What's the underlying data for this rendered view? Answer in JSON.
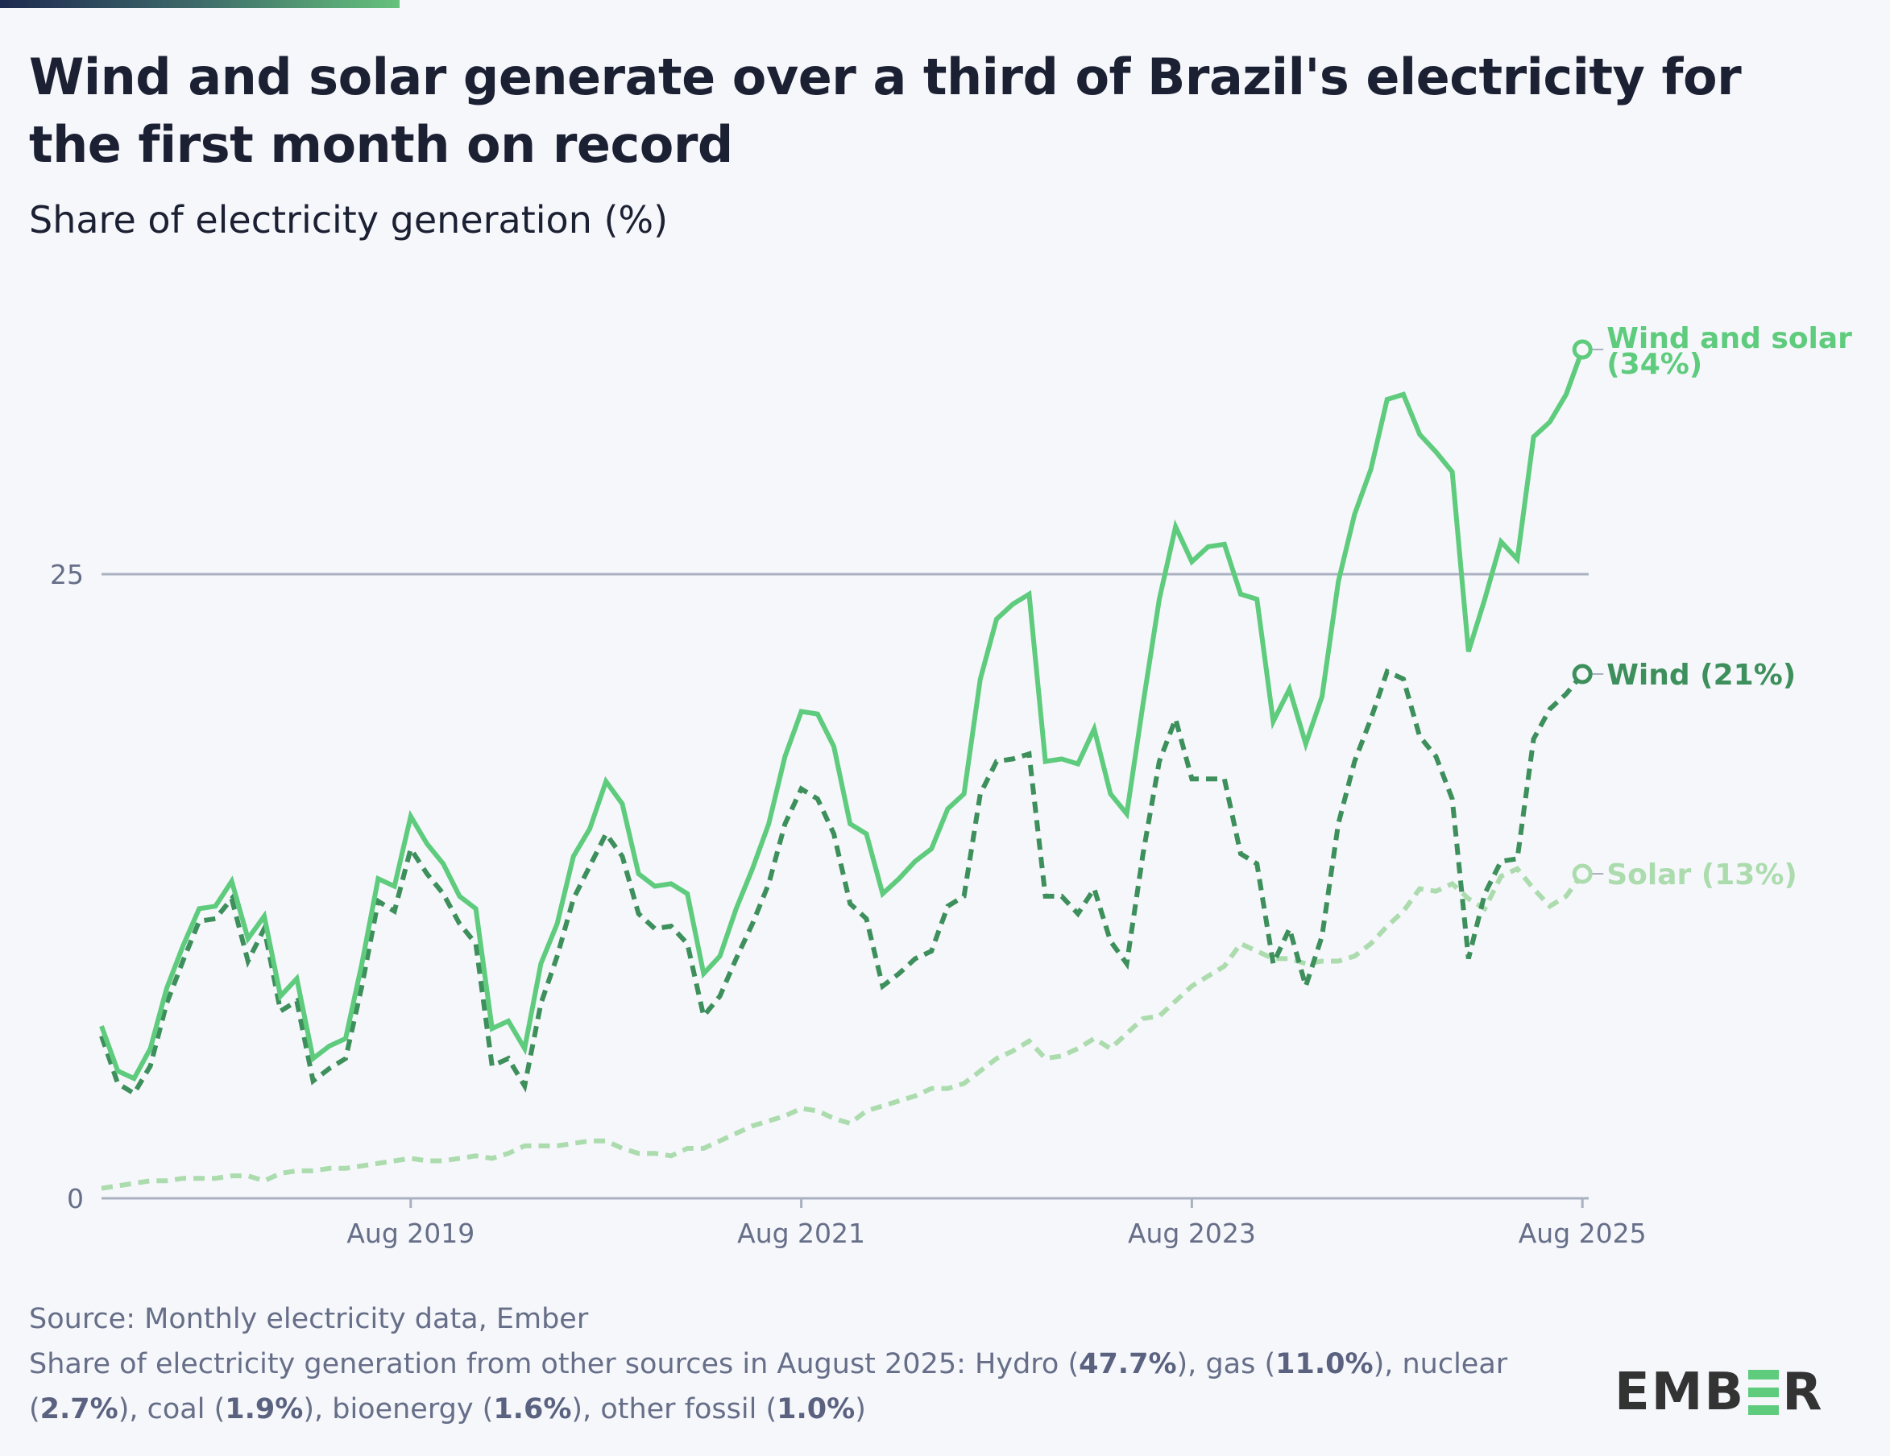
{
  "header": {
    "title": "Wind and solar generate over a third of Brazil's electricity for the first month on record",
    "subtitle": "Share of electricity generation (%)"
  },
  "footer": {
    "source": "Source: Monthly electricity data, Ember",
    "other_sources_intro": "Share of electricity generation from other sources in August 2025: ",
    "other_sources": [
      {
        "name": "Hydro",
        "value": "47.7%"
      },
      {
        "name": "gas",
        "value": "11.0%"
      },
      {
        "name": "nuclear",
        "value": "2.7%"
      },
      {
        "name": "coal",
        "value": "1.9%"
      },
      {
        "name": "bioenergy",
        "value": "1.6%"
      },
      {
        "name": "other fossil",
        "value": "1.0%"
      }
    ]
  },
  "logo": {
    "text_left": "EMB",
    "text_right": "R"
  },
  "chart_data": {
    "type": "line",
    "title": "Wind and solar generate over a third of Brazil's electricity for the first month on record",
    "subtitle": "Share of electricity generation (%)",
    "xlabel": "",
    "ylabel": "Share of electricity generation (%)",
    "x_start": "Jan 2018",
    "x_end": "Aug 2025",
    "x_frequency": "monthly",
    "x_ticks": [
      "Aug 2019",
      "Aug 2021",
      "Aug 2023",
      "Aug 2025"
    ],
    "x_tick_month_index": [
      19,
      43,
      67,
      91
    ],
    "y_ticks": [
      0,
      25
    ],
    "ylim": [
      0,
      34
    ],
    "grid": "horizontal at 25",
    "legend": "inline end labels (right)",
    "series": [
      {
        "name": "Wind and solar",
        "end_label": "Wind and solar",
        "end_value_label": "(34%)",
        "color": "#5ecb7d",
        "style": "solid",
        "values": [
          6.9,
          5.1,
          4.8,
          6.0,
          8.4,
          10.1,
          11.6,
          11.7,
          12.7,
          10.4,
          11.3,
          8.1,
          8.8,
          5.6,
          6.1,
          6.4,
          9.4,
          12.8,
          12.5,
          15.3,
          14.2,
          13.4,
          12.1,
          11.6,
          6.8,
          7.1,
          6.0,
          9.4,
          11.0,
          13.7,
          14.8,
          16.7,
          15.8,
          13.0,
          12.5,
          12.6,
          12.2,
          9.0,
          9.7,
          11.6,
          13.2,
          15.0,
          17.7,
          19.5,
          19.4,
          18.1,
          15.0,
          14.6,
          12.2,
          12.8,
          13.5,
          14.0,
          15.6,
          16.2,
          20.8,
          23.2,
          23.8,
          24.2,
          17.5,
          17.6,
          17.4,
          18.8,
          16.2,
          15.4,
          19.8,
          24.0,
          26.9,
          25.5,
          26.1,
          26.2,
          24.2,
          24.0,
          19.1,
          20.4,
          18.2,
          20.1,
          24.7,
          27.4,
          29.2,
          32.0,
          32.2,
          30.6,
          29.9,
          29.1,
          21.9,
          24.0,
          26.3,
          25.6,
          30.5,
          31.1,
          32.2,
          34.0
        ]
      },
      {
        "name": "Wind",
        "end_label": "Wind (21%)",
        "color": "#3d8f5b",
        "style": "dashed",
        "values": [
          6.5,
          4.6,
          4.2,
          5.3,
          7.8,
          9.5,
          11.1,
          11.2,
          12.0,
          9.5,
          10.8,
          7.5,
          7.9,
          4.7,
          5.2,
          5.6,
          8.5,
          11.9,
          11.5,
          14.0,
          13.0,
          12.2,
          11.0,
          10.2,
          5.3,
          5.6,
          4.5,
          7.8,
          9.7,
          12.0,
          13.3,
          14.6,
          13.7,
          11.4,
          10.8,
          10.9,
          10.2,
          7.3,
          8.1,
          9.6,
          11.0,
          12.6,
          15.0,
          16.4,
          16.0,
          14.6,
          11.8,
          11.2,
          8.5,
          9.0,
          9.6,
          9.9,
          11.7,
          12.1,
          16.2,
          17.5,
          17.6,
          17.8,
          12.1,
          12.1,
          11.4,
          12.4,
          10.3,
          9.4,
          13.8,
          17.5,
          19.2,
          16.8,
          16.8,
          16.8,
          13.8,
          13.4,
          9.4,
          10.8,
          8.5,
          10.5,
          15.0,
          17.5,
          19.2,
          21.1,
          20.8,
          18.5,
          17.7,
          16.0,
          9.6,
          12.2,
          13.5,
          13.6,
          18.4,
          19.6,
          20.2,
          21.0
        ]
      },
      {
        "name": "Solar",
        "end_label": "Solar (13%)",
        "color": "#acdcae",
        "style": "dashed",
        "values": [
          0.4,
          0.5,
          0.6,
          0.7,
          0.7,
          0.8,
          0.8,
          0.8,
          0.9,
          0.9,
          0.7,
          1.0,
          1.1,
          1.1,
          1.2,
          1.2,
          1.3,
          1.4,
          1.5,
          1.6,
          1.5,
          1.5,
          1.6,
          1.7,
          1.6,
          1.8,
          2.1,
          2.1,
          2.1,
          2.2,
          2.3,
          2.3,
          2.0,
          1.8,
          1.8,
          1.7,
          2.0,
          2.0,
          2.3,
          2.6,
          2.9,
          3.1,
          3.3,
          3.6,
          3.5,
          3.2,
          3.0,
          3.5,
          3.7,
          3.9,
          4.1,
          4.4,
          4.4,
          4.6,
          5.1,
          5.6,
          5.9,
          6.3,
          5.6,
          5.7,
          6.0,
          6.4,
          6.0,
          6.6,
          7.2,
          7.3,
          7.9,
          8.5,
          8.9,
          9.3,
          10.2,
          9.9,
          9.6,
          9.6,
          9.4,
          9.5,
          9.5,
          9.7,
          10.2,
          10.9,
          11.5,
          12.4,
          12.3,
          12.6,
          12.0,
          11.6,
          12.9,
          13.2,
          12.4,
          11.7,
          12.1,
          13.0
        ]
      }
    ]
  }
}
